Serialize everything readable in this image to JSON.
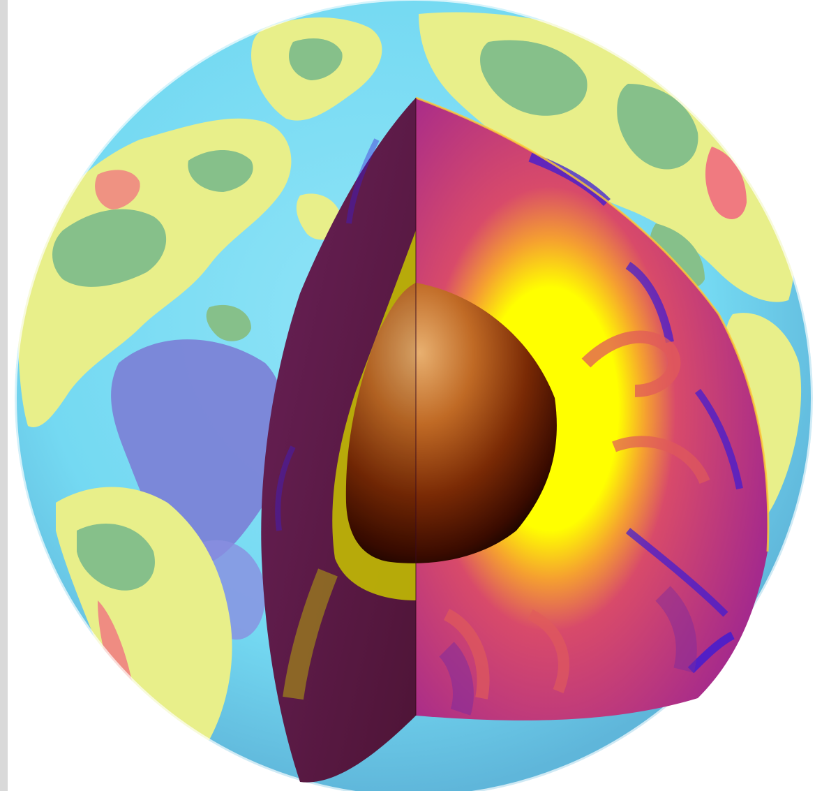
{
  "image": {
    "subject": "earth-interior-cutaway",
    "colors": {
      "ocean_light": "#74d9f2",
      "ocean_deep": "#7b7ed6",
      "land_low": "#86c08a",
      "land_mid": "#e8ef8a",
      "land_high": "#f07a80",
      "mantle_base": "#a52a8c",
      "mantle_cold": "#3b1bd6",
      "mantle_warm": "#e05a5a",
      "mantle_hot": "#ffff00",
      "core_light": "#e3a96b",
      "core_dark": "#3a0b00"
    }
  }
}
